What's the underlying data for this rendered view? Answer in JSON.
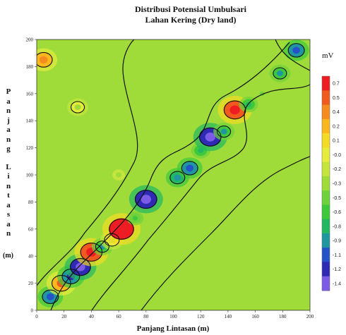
{
  "chart_data": {
    "type": "heatmap",
    "title": "Distribusi Potensial Umbulsari",
    "subtitle": "Lahan Kering (Dry land)",
    "xlabel": "Panjang Lintasan (m)",
    "ylabel": "Panjang Lintasan",
    "ylabel_unit": "(m)",
    "xlim": [
      0,
      200
    ],
    "ylim": [
      0,
      200
    ],
    "x_ticks": [
      "0",
      "20",
      "40",
      "60",
      "80",
      "100",
      "120",
      "140",
      "160",
      "180",
      "200"
    ],
    "y_ticks": [
      "0",
      "20",
      "40",
      "60",
      "80",
      "100",
      "120",
      "140",
      "160",
      "180",
      "200"
    ],
    "colorbar": {
      "title": "mV",
      "labels": [
        "0.7",
        "0.5",
        "0.4",
        "0.2",
        "0.1",
        "-0.0",
        "-0.2",
        "-0.3",
        "-0.5",
        "-0.6",
        "-0.8",
        "-0.9",
        "-1.1",
        "-1.2",
        "-1.4"
      ],
      "colors": [
        "#ee1d24",
        "#f05a1e",
        "#f58c1e",
        "#f9b81e",
        "#f5dc24",
        "#e6ec3c",
        "#c6e53c",
        "#9fdc3a",
        "#6fd23a",
        "#3ec83c",
        "#22b862",
        "#1f96a0",
        "#2452c8",
        "#2f2ab4",
        "#7b5ce6"
      ]
    },
    "background_value": -0.4,
    "anomalies": [
      {
        "x": 10,
        "y": 10,
        "value": -0.9
      },
      {
        "x": 18,
        "y": 20,
        "value": 0.3
      },
      {
        "x": 25,
        "y": 25,
        "value": -1.0
      },
      {
        "x": 32,
        "y": 32,
        "value": -1.2
      },
      {
        "x": 40,
        "y": 43,
        "value": 0.5
      },
      {
        "x": 48,
        "y": 47,
        "value": -0.7
      },
      {
        "x": 55,
        "y": 52,
        "value": 0.0
      },
      {
        "x": 62,
        "y": 60,
        "value": 0.7
      },
      {
        "x": 72,
        "y": 68,
        "value": -0.5
      },
      {
        "x": 80,
        "y": 82,
        "value": -1.3
      },
      {
        "x": 103,
        "y": 98,
        "value": -0.8
      },
      {
        "x": 112,
        "y": 105,
        "value": -0.9
      },
      {
        "x": 120,
        "y": 118,
        "value": -0.6
      },
      {
        "x": 127,
        "y": 128,
        "value": -1.3
      },
      {
        "x": 137,
        "y": 132,
        "value": -0.7
      },
      {
        "x": 145,
        "y": 148,
        "value": 0.5
      },
      {
        "x": 155,
        "y": 152,
        "value": -0.6
      },
      {
        "x": 165,
        "y": 160,
        "value": -0.3
      },
      {
        "x": 178,
        "y": 175,
        "value": -0.7
      },
      {
        "x": 190,
        "y": 192,
        "value": -0.9
      },
      {
        "x": 5,
        "y": 185,
        "value": 0.2
      },
      {
        "x": 30,
        "y": 150,
        "value": -0.1
      },
      {
        "x": 60,
        "y": 100,
        "value": -0.2
      }
    ]
  }
}
